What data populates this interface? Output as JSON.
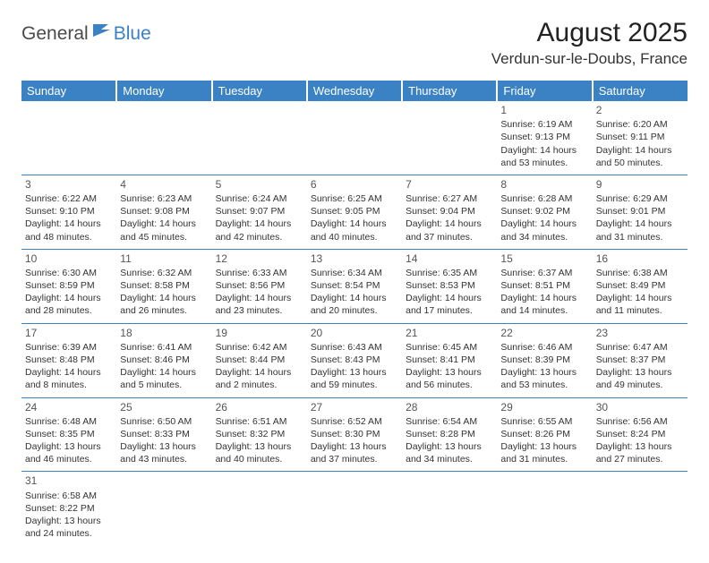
{
  "logo": {
    "text1": "General",
    "text2": "Blue"
  },
  "title": "August 2025",
  "location": "Verdun-sur-le-Doubs, France",
  "colors": {
    "header_bg": "#3b82c4",
    "header_text": "#ffffff",
    "line": "#3b82c4",
    "text": "#333333",
    "logo_blue": "#3b82c4",
    "logo_gray": "#4a4a4a"
  },
  "daysOfWeek": [
    "Sunday",
    "Monday",
    "Tuesday",
    "Wednesday",
    "Thursday",
    "Friday",
    "Saturday"
  ],
  "firstWeekdayIndex": 5,
  "daysInMonth": 31,
  "cells": {
    "1": {
      "sunrise": "6:19 AM",
      "sunset": "9:13 PM",
      "daylight": "14 hours and 53 minutes."
    },
    "2": {
      "sunrise": "6:20 AM",
      "sunset": "9:11 PM",
      "daylight": "14 hours and 50 minutes."
    },
    "3": {
      "sunrise": "6:22 AM",
      "sunset": "9:10 PM",
      "daylight": "14 hours and 48 minutes."
    },
    "4": {
      "sunrise": "6:23 AM",
      "sunset": "9:08 PM",
      "daylight": "14 hours and 45 minutes."
    },
    "5": {
      "sunrise": "6:24 AM",
      "sunset": "9:07 PM",
      "daylight": "14 hours and 42 minutes."
    },
    "6": {
      "sunrise": "6:25 AM",
      "sunset": "9:05 PM",
      "daylight": "14 hours and 40 minutes."
    },
    "7": {
      "sunrise": "6:27 AM",
      "sunset": "9:04 PM",
      "daylight": "14 hours and 37 minutes."
    },
    "8": {
      "sunrise": "6:28 AM",
      "sunset": "9:02 PM",
      "daylight": "14 hours and 34 minutes."
    },
    "9": {
      "sunrise": "6:29 AM",
      "sunset": "9:01 PM",
      "daylight": "14 hours and 31 minutes."
    },
    "10": {
      "sunrise": "6:30 AM",
      "sunset": "8:59 PM",
      "daylight": "14 hours and 28 minutes."
    },
    "11": {
      "sunrise": "6:32 AM",
      "sunset": "8:58 PM",
      "daylight": "14 hours and 26 minutes."
    },
    "12": {
      "sunrise": "6:33 AM",
      "sunset": "8:56 PM",
      "daylight": "14 hours and 23 minutes."
    },
    "13": {
      "sunrise": "6:34 AM",
      "sunset": "8:54 PM",
      "daylight": "14 hours and 20 minutes."
    },
    "14": {
      "sunrise": "6:35 AM",
      "sunset": "8:53 PM",
      "daylight": "14 hours and 17 minutes."
    },
    "15": {
      "sunrise": "6:37 AM",
      "sunset": "8:51 PM",
      "daylight": "14 hours and 14 minutes."
    },
    "16": {
      "sunrise": "6:38 AM",
      "sunset": "8:49 PM",
      "daylight": "14 hours and 11 minutes."
    },
    "17": {
      "sunrise": "6:39 AM",
      "sunset": "8:48 PM",
      "daylight": "14 hours and 8 minutes."
    },
    "18": {
      "sunrise": "6:41 AM",
      "sunset": "8:46 PM",
      "daylight": "14 hours and 5 minutes."
    },
    "19": {
      "sunrise": "6:42 AM",
      "sunset": "8:44 PM",
      "daylight": "14 hours and 2 minutes."
    },
    "20": {
      "sunrise": "6:43 AM",
      "sunset": "8:43 PM",
      "daylight": "13 hours and 59 minutes."
    },
    "21": {
      "sunrise": "6:45 AM",
      "sunset": "8:41 PM",
      "daylight": "13 hours and 56 minutes."
    },
    "22": {
      "sunrise": "6:46 AM",
      "sunset": "8:39 PM",
      "daylight": "13 hours and 53 minutes."
    },
    "23": {
      "sunrise": "6:47 AM",
      "sunset": "8:37 PM",
      "daylight": "13 hours and 49 minutes."
    },
    "24": {
      "sunrise": "6:48 AM",
      "sunset": "8:35 PM",
      "daylight": "13 hours and 46 minutes."
    },
    "25": {
      "sunrise": "6:50 AM",
      "sunset": "8:33 PM",
      "daylight": "13 hours and 43 minutes."
    },
    "26": {
      "sunrise": "6:51 AM",
      "sunset": "8:32 PM",
      "daylight": "13 hours and 40 minutes."
    },
    "27": {
      "sunrise": "6:52 AM",
      "sunset": "8:30 PM",
      "daylight": "13 hours and 37 minutes."
    },
    "28": {
      "sunrise": "6:54 AM",
      "sunset": "8:28 PM",
      "daylight": "13 hours and 34 minutes."
    },
    "29": {
      "sunrise": "6:55 AM",
      "sunset": "8:26 PM",
      "daylight": "13 hours and 31 minutes."
    },
    "30": {
      "sunrise": "6:56 AM",
      "sunset": "8:24 PM",
      "daylight": "13 hours and 27 minutes."
    },
    "31": {
      "sunrise": "6:58 AM",
      "sunset": "8:22 PM",
      "daylight": "13 hours and 24 minutes."
    }
  },
  "labels": {
    "sunrise": "Sunrise:",
    "sunset": "Sunset:",
    "daylight": "Daylight:"
  }
}
